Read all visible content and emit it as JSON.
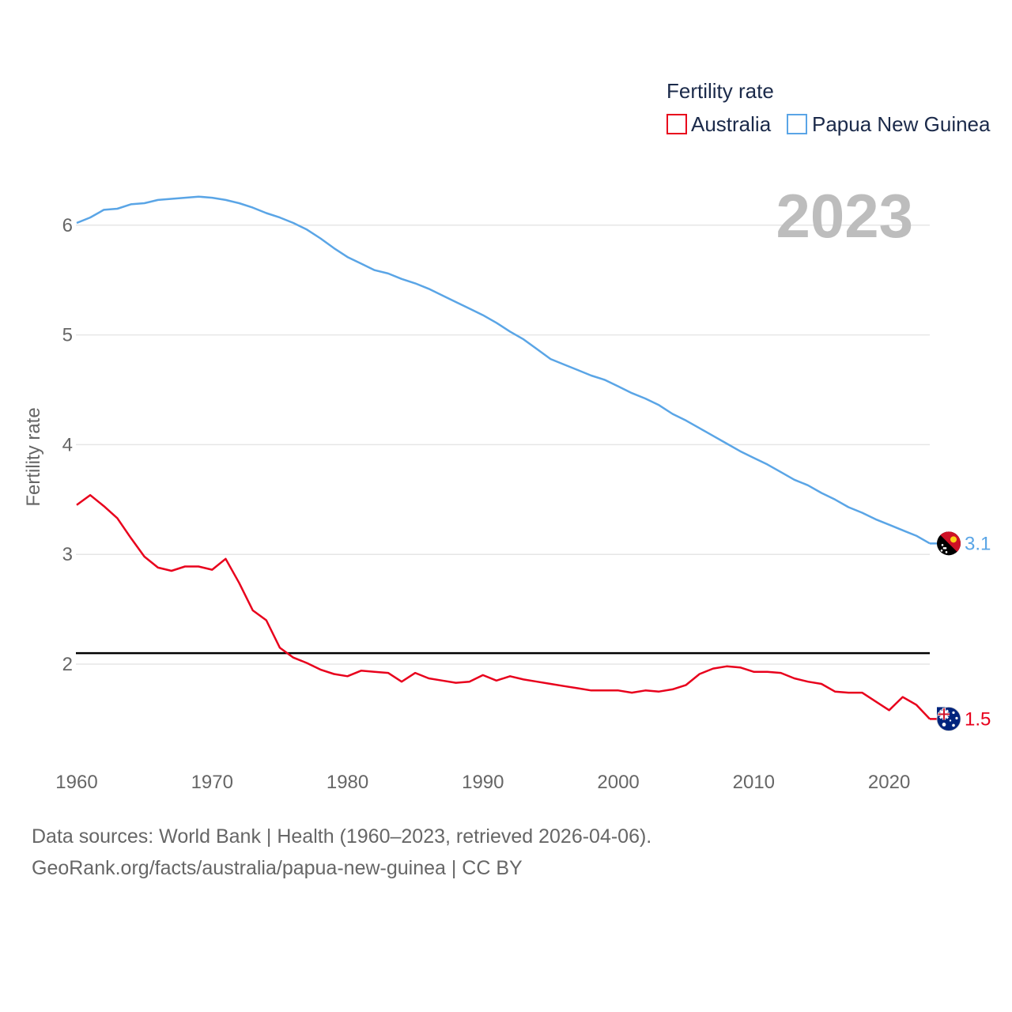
{
  "chart_data": {
    "type": "line",
    "ylabel": "Fertility rate",
    "legend_title": "Fertility rate",
    "year_label": "2023",
    "xlim": [
      1960,
      2023
    ],
    "ylim": [
      1.15,
      6.45
    ],
    "x_ticks": [
      1960,
      1970,
      1980,
      1990,
      2000,
      2010,
      2020
    ],
    "y_ticks": [
      2,
      3,
      4,
      5,
      6
    ],
    "reference_line": 2.1,
    "x": [
      1960,
      1961,
      1962,
      1963,
      1964,
      1965,
      1966,
      1967,
      1968,
      1969,
      1970,
      1971,
      1972,
      1973,
      1974,
      1975,
      1976,
      1977,
      1978,
      1979,
      1980,
      1981,
      1982,
      1983,
      1984,
      1985,
      1986,
      1987,
      1988,
      1989,
      1990,
      1991,
      1992,
      1993,
      1994,
      1995,
      1996,
      1997,
      1998,
      1999,
      2000,
      2001,
      2002,
      2003,
      2004,
      2005,
      2006,
      2007,
      2008,
      2009,
      2010,
      2011,
      2012,
      2013,
      2014,
      2015,
      2016,
      2017,
      2018,
      2019,
      2020,
      2021,
      2022,
      2023
    ],
    "series": [
      {
        "name": "Australia",
        "color": "#e8001c",
        "end_label": "1.5",
        "flag": "australia-flag",
        "values": [
          3.45,
          3.54,
          3.44,
          3.33,
          3.15,
          2.98,
          2.88,
          2.85,
          2.89,
          2.89,
          2.86,
          2.96,
          2.74,
          2.49,
          2.4,
          2.15,
          2.06,
          2.01,
          1.95,
          1.91,
          1.89,
          1.94,
          1.93,
          1.92,
          1.84,
          1.92,
          1.87,
          1.85,
          1.83,
          1.84,
          1.9,
          1.85,
          1.89,
          1.86,
          1.84,
          1.82,
          1.8,
          1.78,
          1.76,
          1.76,
          1.76,
          1.74,
          1.76,
          1.75,
          1.77,
          1.81,
          1.91,
          1.96,
          1.98,
          1.97,
          1.93,
          1.93,
          1.92,
          1.87,
          1.84,
          1.82,
          1.75,
          1.74,
          1.74,
          1.66,
          1.58,
          1.7,
          1.63,
          1.5
        ]
      },
      {
        "name": "Papua New Guinea",
        "color": "#5aa5e6",
        "end_label": "3.1",
        "flag": "papua-new-guinea-flag",
        "values": [
          6.02,
          6.07,
          6.14,
          6.15,
          6.19,
          6.2,
          6.23,
          6.24,
          6.25,
          6.26,
          6.25,
          6.23,
          6.2,
          6.16,
          6.11,
          6.07,
          6.02,
          5.96,
          5.88,
          5.79,
          5.71,
          5.65,
          5.59,
          5.56,
          5.51,
          5.47,
          5.42,
          5.36,
          5.3,
          5.24,
          5.18,
          5.11,
          5.03,
          4.96,
          4.87,
          4.78,
          4.73,
          4.68,
          4.63,
          4.59,
          4.53,
          4.47,
          4.42,
          4.36,
          4.28,
          4.22,
          4.15,
          4.08,
          4.01,
          3.94,
          3.88,
          3.82,
          3.75,
          3.68,
          3.63,
          3.56,
          3.5,
          3.43,
          3.38,
          3.32,
          3.27,
          3.22,
          3.17,
          3.1
        ]
      }
    ]
  },
  "footer": {
    "source_line": "Data sources: World Bank | Health (1960–2023, retrieved 2026-04-06).",
    "credit_line": "GeoRank.org/facts/australia/papua-new-guinea | CC BY"
  }
}
